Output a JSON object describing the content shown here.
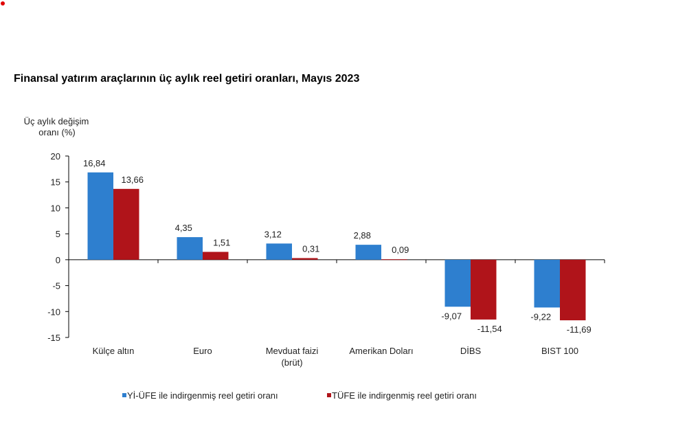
{
  "title": "Finansal yatırım araçlarının üç aylık reel getiri oranları, Mayıs 2023",
  "chart_data": {
    "type": "bar",
    "title": "Finansal yatırım araçlarının üç aylık reel getiri oranları, Mayıs 2023",
    "ylabel_lines": [
      "Üç aylık değişim",
      "oranı (%)"
    ],
    "xlabel": "",
    "ylim": [
      -15,
      20
    ],
    "yticks": [
      20,
      15,
      10,
      5,
      0,
      -5,
      -10,
      -15
    ],
    "grid": false,
    "legend_position": "bottom",
    "categories": [
      [
        "Külçe altın"
      ],
      [
        "Euro"
      ],
      [
        "Mevduat faizi",
        "(brüt)"
      ],
      [
        "Amerikan Doları"
      ],
      [
        "DİBS"
      ],
      [
        "BIST 100"
      ]
    ],
    "series": [
      {
        "name": "Yİ-ÜFE ile indirgenmiş reel getiri oranı",
        "color": "#2e7fcf",
        "values": [
          16.84,
          4.35,
          3.12,
          2.88,
          -9.07,
          -9.22
        ],
        "labels": [
          "16,84",
          "4,35",
          "3,12",
          "2,88",
          "-9,07",
          "-9,22"
        ]
      },
      {
        "name": "TÜFE ile indirgenmiş reel getiri oranı",
        "color": "#b0141a",
        "values": [
          13.66,
          1.51,
          0.31,
          0.09,
          -11.54,
          -11.69
        ],
        "labels": [
          "13,66",
          "1,51",
          "0,31",
          "0,09",
          "-11,54",
          "-11,69"
        ]
      }
    ]
  }
}
